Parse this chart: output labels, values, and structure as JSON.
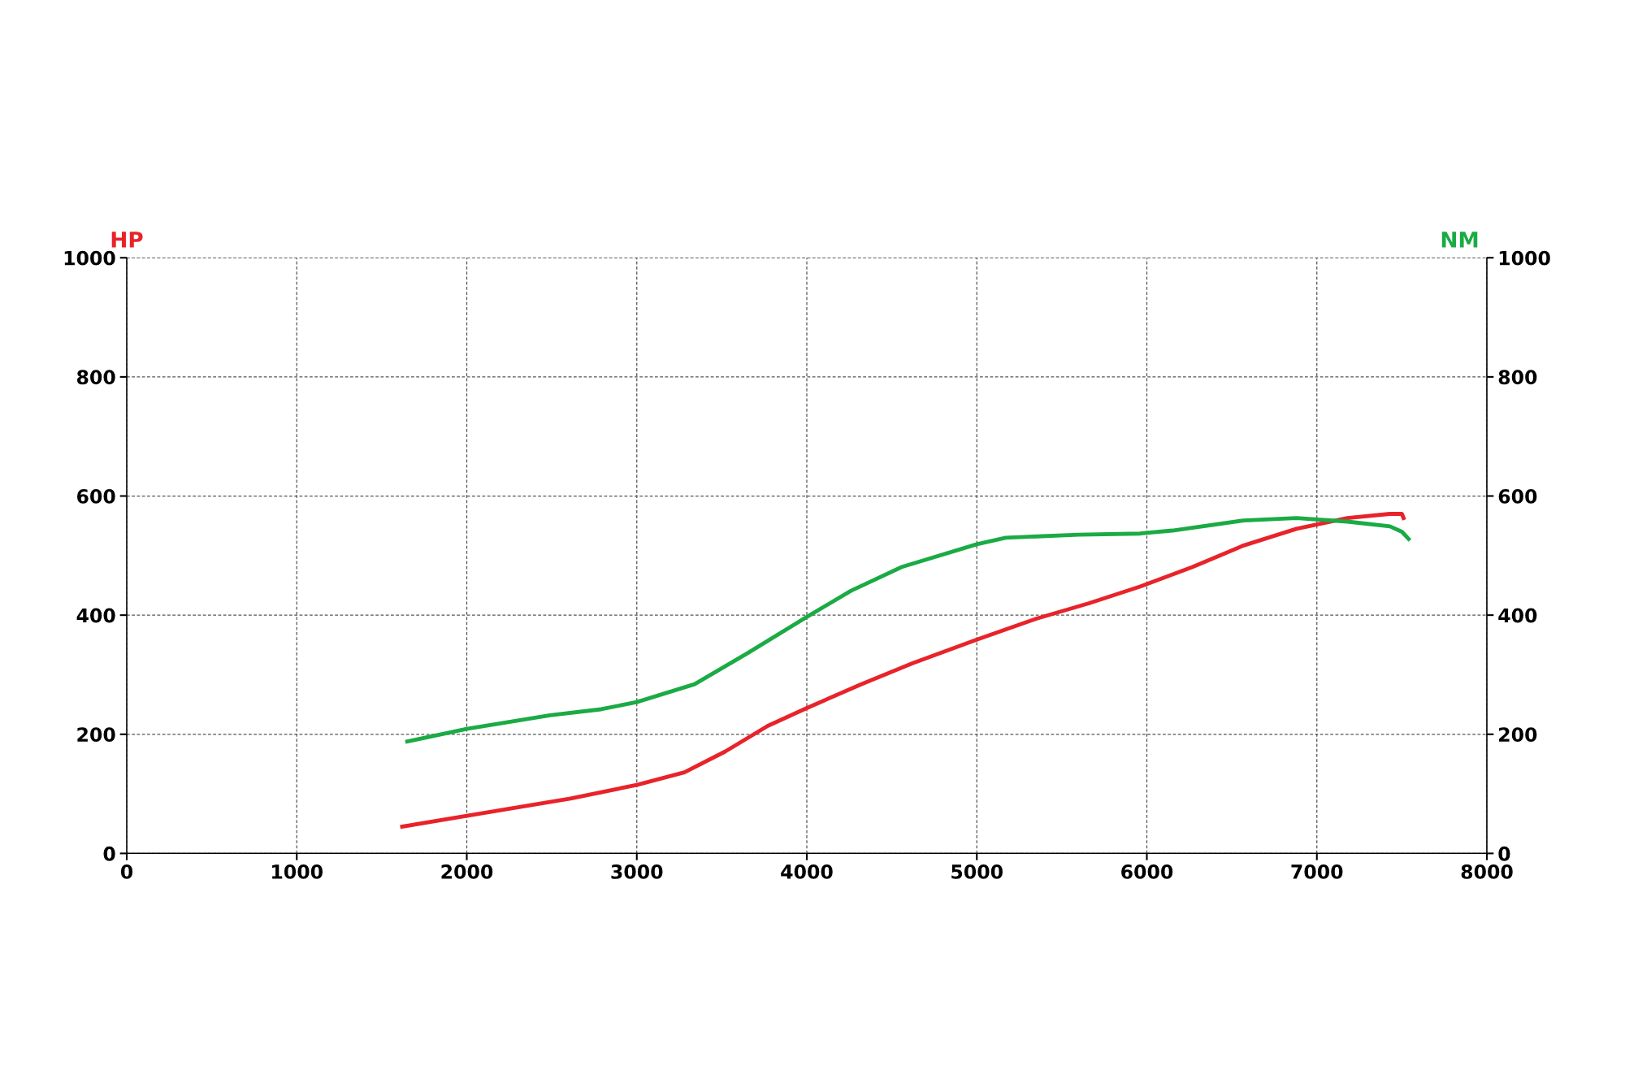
{
  "chart_data": {
    "type": "line",
    "ylabel": "HP",
    "y2label": "NM",
    "xlim": [
      0,
      8000
    ],
    "xticks": [
      0,
      1000,
      2000,
      3000,
      4000,
      5000,
      6000,
      7000,
      8000
    ],
    "ylim": [
      0,
      1000
    ],
    "yticks": [
      0,
      200,
      400,
      600,
      800,
      1000
    ],
    "y2lim": [
      0,
      1000
    ],
    "y2ticks": [
      0,
      200,
      400,
      600,
      800,
      1000
    ],
    "grid": true,
    "line_style": "solid",
    "marker": "none",
    "series": [
      {
        "color": "#e8232a",
        "axis": "y",
        "x": [
          1620,
          2000,
          2610,
          3000,
          3280,
          3520,
          3770,
          4000,
          4320,
          4620,
          5000,
          5350,
          5660,
          5960,
          6270,
          6570,
          6880,
          7180,
          7430,
          7500,
          7510
        ],
        "values": [
          45,
          63,
          92,
          115,
          136,
          171,
          214,
          244,
          284,
          319,
          359,
          394,
          420,
          448,
          481,
          517,
          545,
          563,
          570,
          570,
          563
        ]
      },
      {
        "color": "#1aab44",
        "axis": "y2",
        "x": [
          1650,
          2000,
          2490,
          2790,
          3000,
          3340,
          3650,
          4000,
          4260,
          4560,
          5000,
          5170,
          5600,
          5960,
          6150,
          6570,
          6880,
          7180,
          7430,
          7500,
          7540
        ],
        "values": [
          188,
          209,
          232,
          242,
          254,
          284,
          336,
          397,
          441,
          481,
          519,
          530,
          535,
          537,
          542,
          559,
          563,
          557,
          549,
          540,
          528
        ]
      }
    ]
  }
}
